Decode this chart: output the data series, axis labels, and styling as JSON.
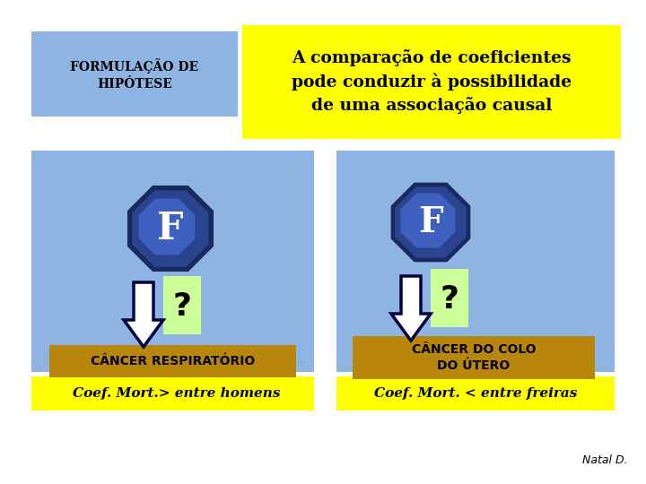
{
  "bg_color": "#ffffff",
  "light_blue": "#8DB4E2",
  "yellow": "#FFFF00",
  "gold": "#B8860B",
  "light_green": "#CCFF99",
  "title1_text": "FORMULAÇÃO DE\nHIPÓTESE",
  "title2_text": "A comparação de coeficientes\npode conduzir à possibilidade\nde uma associação causal",
  "left_label": "CÂNCER RESPIRATÓRIO",
  "right_label": "CÂNCER DO COLO\nDO ÚTERO",
  "left_coef": "Coef. Mort.> entre homens",
  "right_coef": "Coef. Mort. < entre freiras",
  "credit": "Natal D.",
  "F_letter": "F",
  "question": "?"
}
